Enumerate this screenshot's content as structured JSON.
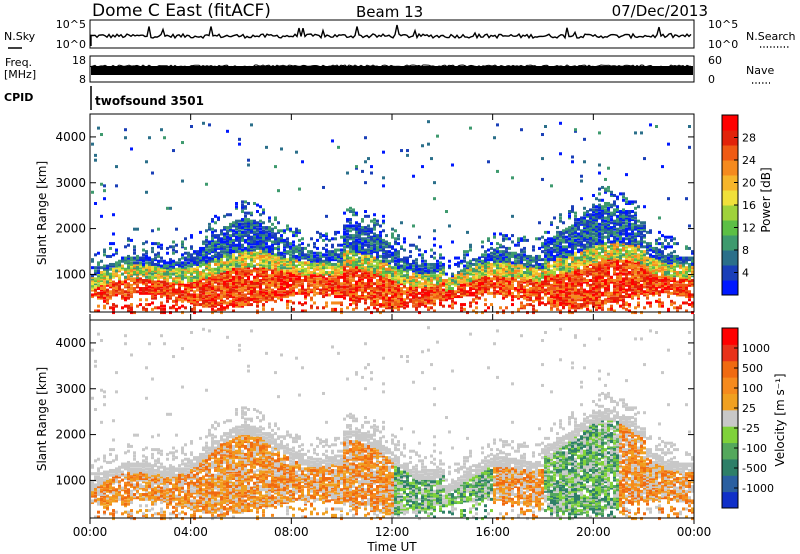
{
  "header": {
    "station": "Dome C East (fitACF)",
    "beam": "Beam 13",
    "date": "07/Dec/2013"
  },
  "chart_data": [
    {
      "type": "line",
      "panel": "noise",
      "ylabel_left": "N.Sky",
      "ylabel_right": "N.Search",
      "yticks_left": [
        "10^5",
        "10^0"
      ],
      "yticks_right": [
        "10^5",
        "10^0"
      ],
      "yscale": "log",
      "xlim": [
        "00:00",
        "24:00"
      ]
    },
    {
      "type": "line",
      "panel": "frequency",
      "ylabel_left_1": "Freq.",
      "ylabel_left_2": "[MHz]",
      "ylabel_right": "Nave",
      "yticks_left": [
        "18",
        "8"
      ],
      "yticks_right": [
        "60",
        "0"
      ],
      "freq_mhz_approx": 10,
      "xlim": [
        "00:00",
        "24:00"
      ]
    },
    {
      "type": "table",
      "panel": "cpid",
      "label": "CPID",
      "program": "twofsound 3501"
    },
    {
      "type": "heatmap",
      "panel": "power",
      "ylabel": "Slant Range [km]",
      "yticks": [
        "1000",
        "2000",
        "3000",
        "4000"
      ],
      "ylim": [
        180,
        4500
      ],
      "colorbar_label": "Power [dB]",
      "colorbar_ticks": [
        "4",
        "8",
        "12",
        "16",
        "20",
        "24",
        "28"
      ],
      "colorbar_range": [
        0,
        31
      ],
      "colors": [
        "#0018ff",
        "#1a3fb8",
        "#2b6f8a",
        "#3e9a6e",
        "#5cbf45",
        "#9fd23a",
        "#f0e03a",
        "#f6b52a",
        "#f58a1d",
        "#ef5a14",
        "#e2230a",
        "#ff0000"
      ]
    },
    {
      "type": "heatmap",
      "panel": "velocity",
      "ylabel": "Slant Range [km]",
      "yticks": [
        "1000",
        "2000",
        "3000",
        "4000"
      ],
      "ylim": [
        180,
        4500
      ],
      "colorbar_label": "Velocity [m s⁻¹]",
      "colorbar_ticks": [
        "1000",
        "500",
        "100",
        "25",
        "-25",
        "-100",
        "-500",
        "-1000"
      ],
      "colors": [
        "#1030c8",
        "#2a5fa0",
        "#2e7f68",
        "#54a85c",
        "#7fd23a",
        "#c8c8c8",
        "#f0a020",
        "#f58a1d",
        "#f06a10",
        "#e8321a",
        "#ff0000"
      ],
      "xticks": [
        "00:00",
        "04:00",
        "08:00",
        "12:00",
        "16:00",
        "20:00",
        "00:00"
      ],
      "xlabel": "Time UT"
    }
  ]
}
